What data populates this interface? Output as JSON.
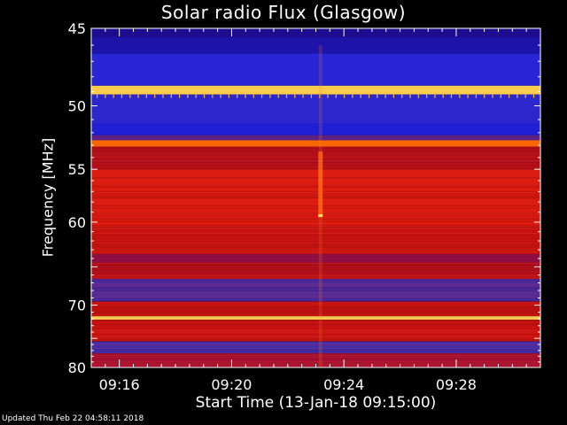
{
  "chart_data": {
    "type": "heatmap",
    "title": "Solar radio Flux (Glasgow)",
    "xlabel": "Start Time (13-Jan-18 09:15:00)",
    "ylabel": "Frequency [MHz]",
    "x_range": [
      "09:15:00",
      "09:31:00"
    ],
    "x_ticks": [
      "09:16",
      "09:20",
      "09:24",
      "09:28"
    ],
    "ylim": [
      45,
      80
    ],
    "y_ticks": [
      45,
      50,
      55,
      60,
      70,
      80
    ],
    "y_scale": "reciprocal",
    "colormap": [
      "#1a0060",
      "#2222e0",
      "#3a2fb0",
      "#8a1050",
      "#c01010",
      "#e82010",
      "#ff8000",
      "#ffe060"
    ],
    "bands": [
      {
        "from": 45.0,
        "to": 45.5,
        "level": 0.05
      },
      {
        "from": 45.5,
        "to": 46.5,
        "level": 0.08
      },
      {
        "from": 46.5,
        "to": 48.6,
        "level": 0.18
      },
      {
        "from": 48.6,
        "to": 49.2,
        "level": 0.97
      },
      {
        "from": 49.2,
        "to": 51.3,
        "level": 0.2
      },
      {
        "from": 51.3,
        "to": 52.2,
        "level": 0.13
      },
      {
        "from": 52.2,
        "to": 52.6,
        "level": 0.35
      },
      {
        "from": 52.6,
        "to": 53.1,
        "level": 0.82
      },
      {
        "from": 53.1,
        "to": 55.0,
        "level": 0.55
      },
      {
        "from": 55.0,
        "to": 60.5,
        "level": 0.66
      },
      {
        "from": 60.5,
        "to": 63.5,
        "level": 0.6
      },
      {
        "from": 63.5,
        "to": 64.5,
        "level": 0.45
      },
      {
        "from": 64.5,
        "to": 66.5,
        "level": 0.55
      },
      {
        "from": 66.5,
        "to": 69.5,
        "level": 0.32
      },
      {
        "from": 69.5,
        "to": 71.6,
        "level": 0.58
      },
      {
        "from": 71.6,
        "to": 72.1,
        "level": 0.98
      },
      {
        "from": 72.1,
        "to": 75.5,
        "level": 0.6
      },
      {
        "from": 75.5,
        "to": 77.5,
        "level": 0.3
      },
      {
        "from": 77.5,
        "to": 80.0,
        "level": 0.5
      }
    ],
    "burst": {
      "time": "09:23:10",
      "from": 53.5,
      "to": 59.5
    },
    "grid": false
  },
  "footer": {
    "updated": "Updated Thu Feb 22 04:58:11 2018"
  }
}
